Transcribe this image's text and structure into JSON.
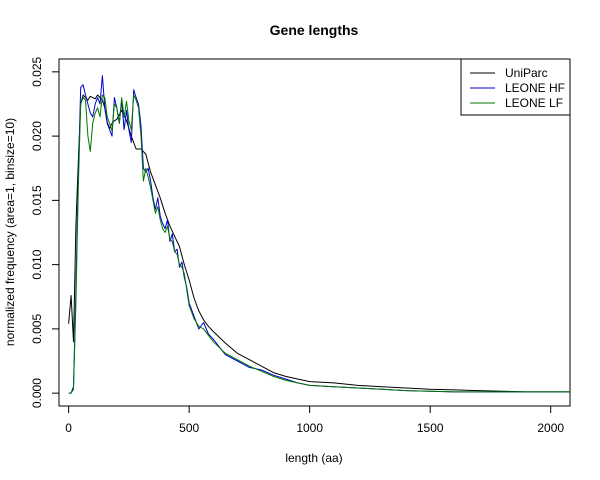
{
  "chart_data": {
    "type": "line",
    "title": "Gene lengths",
    "xlabel": "length (aa)",
    "ylabel": "normalized frequency (area=1, binsize=10)",
    "xlim": [
      -40,
      2080
    ],
    "ylim": [
      -0.001,
      0.026
    ],
    "xticks": [
      0,
      500,
      1000,
      1500,
      2000
    ],
    "xtick_labels": [
      "0",
      "500",
      "1000",
      "1500",
      "2000"
    ],
    "yticks": [
      0,
      0.005,
      0.01,
      0.015,
      0.02,
      0.025
    ],
    "ytick_labels": [
      "0.000",
      "0.005",
      "0.010",
      "0.015",
      "0.020",
      "0.025"
    ],
    "grid": false,
    "legend_position": "top-right",
    "series": [
      {
        "name": "UniParc",
        "color": "#000000",
        "x": [
          0,
          10,
          20,
          30,
          40,
          50,
          60,
          70,
          80,
          90,
          100,
          110,
          120,
          130,
          140,
          150,
          160,
          170,
          180,
          190,
          200,
          220,
          240,
          260,
          280,
          300,
          320,
          340,
          360,
          380,
          400,
          420,
          440,
          460,
          480,
          500,
          520,
          540,
          560,
          580,
          600,
          650,
          700,
          750,
          800,
          850,
          900,
          950,
          1000,
          1100,
          1200,
          1300,
          1400,
          1500,
          1600,
          1700,
          1800,
          1900,
          2000,
          2080
        ],
        "y": [
          0.0054,
          0.0076,
          0.004,
          0.013,
          0.018,
          0.0225,
          0.0232,
          0.023,
          0.0228,
          0.0231,
          0.023,
          0.0229,
          0.0232,
          0.023,
          0.0228,
          0.0222,
          0.0211,
          0.0206,
          0.021,
          0.0212,
          0.0213,
          0.022,
          0.0212,
          0.02,
          0.019,
          0.019,
          0.0186,
          0.0172,
          0.0162,
          0.0152,
          0.014,
          0.013,
          0.0122,
          0.0114,
          0.01,
          0.0088,
          0.0074,
          0.0064,
          0.0057,
          0.0052,
          0.0048,
          0.0039,
          0.0031,
          0.0026,
          0.0021,
          0.0016,
          0.0013,
          0.0011,
          0.0009,
          0.0008,
          0.0006,
          0.0005,
          0.0004,
          0.0003,
          0.00025,
          0.0002,
          0.00015,
          0.0001,
          0.0001,
          0.0001
        ]
      },
      {
        "name": "LEONE HF",
        "color": "#0000cc",
        "x": [
          0,
          10,
          20,
          30,
          40,
          50,
          60,
          70,
          80,
          90,
          100,
          110,
          120,
          130,
          140,
          150,
          160,
          170,
          180,
          190,
          200,
          210,
          220,
          230,
          240,
          250,
          260,
          270,
          280,
          290,
          300,
          310,
          320,
          330,
          340,
          350,
          360,
          370,
          380,
          390,
          400,
          410,
          420,
          430,
          440,
          450,
          460,
          470,
          480,
          490,
          500,
          520,
          540,
          560,
          580,
          600,
          650,
          700,
          750,
          800,
          850,
          900,
          950,
          1000,
          1100,
          1200,
          1300,
          1400,
          1500,
          1600,
          1700,
          1800,
          1900,
          2000,
          2080
        ],
        "y": [
          0.0,
          0.0,
          0.0005,
          0.008,
          0.017,
          0.0238,
          0.024,
          0.0232,
          0.0225,
          0.0218,
          0.0215,
          0.0225,
          0.023,
          0.0225,
          0.0247,
          0.0222,
          0.021,
          0.0205,
          0.02,
          0.023,
          0.0222,
          0.021,
          0.0228,
          0.0205,
          0.022,
          0.0205,
          0.0195,
          0.0236,
          0.023,
          0.0225,
          0.0208,
          0.0175,
          0.0172,
          0.0175,
          0.0165,
          0.0152,
          0.0143,
          0.0152,
          0.0138,
          0.0132,
          0.0128,
          0.0135,
          0.0118,
          0.0124,
          0.011,
          0.0112,
          0.0098,
          0.0102,
          0.009,
          0.0082,
          0.007,
          0.006,
          0.005,
          0.0055,
          0.0046,
          0.0042,
          0.003,
          0.0025,
          0.002,
          0.0018,
          0.0014,
          0.0011,
          0.0008,
          0.0006,
          0.0005,
          0.0004,
          0.0003,
          0.0002,
          0.00015,
          0.0001,
          0.0001,
          0.0001,
          0.0001,
          0.0001,
          0.0001
        ]
      },
      {
        "name": "LEONE LF",
        "color": "#007700",
        "x": [
          0,
          10,
          20,
          30,
          40,
          50,
          60,
          70,
          80,
          90,
          100,
          110,
          120,
          130,
          140,
          150,
          160,
          170,
          180,
          190,
          200,
          210,
          220,
          230,
          240,
          250,
          260,
          270,
          280,
          290,
          300,
          310,
          320,
          330,
          340,
          350,
          360,
          370,
          380,
          390,
          400,
          410,
          420,
          430,
          440,
          450,
          460,
          470,
          480,
          490,
          500,
          520,
          540,
          560,
          580,
          600,
          650,
          700,
          750,
          800,
          850,
          900,
          950,
          1000,
          1100,
          1200,
          1300,
          1400,
          1500,
          1600,
          1700,
          1800,
          1900,
          2000,
          2080
        ],
        "y": [
          0.0,
          0.0,
          0.0003,
          0.007,
          0.016,
          0.0225,
          0.023,
          0.0228,
          0.02,
          0.0188,
          0.021,
          0.0218,
          0.0222,
          0.0215,
          0.0232,
          0.023,
          0.0215,
          0.021,
          0.0204,
          0.0225,
          0.0222,
          0.021,
          0.023,
          0.0215,
          0.0227,
          0.0212,
          0.0205,
          0.0232,
          0.0228,
          0.0222,
          0.02,
          0.0165,
          0.0175,
          0.0168,
          0.016,
          0.015,
          0.014,
          0.0145,
          0.0135,
          0.0128,
          0.0125,
          0.013,
          0.012,
          0.0118,
          0.011,
          0.0108,
          0.01,
          0.0098,
          0.0093,
          0.008,
          0.0068,
          0.0058,
          0.0052,
          0.005,
          0.0045,
          0.004,
          0.0031,
          0.0026,
          0.0021,
          0.0017,
          0.0013,
          0.001,
          0.0008,
          0.0006,
          0.0005,
          0.0004,
          0.0003,
          0.0002,
          0.00015,
          0.0001,
          0.0001,
          0.0001,
          0.0001,
          0.0001,
          0.0001
        ]
      }
    ]
  }
}
